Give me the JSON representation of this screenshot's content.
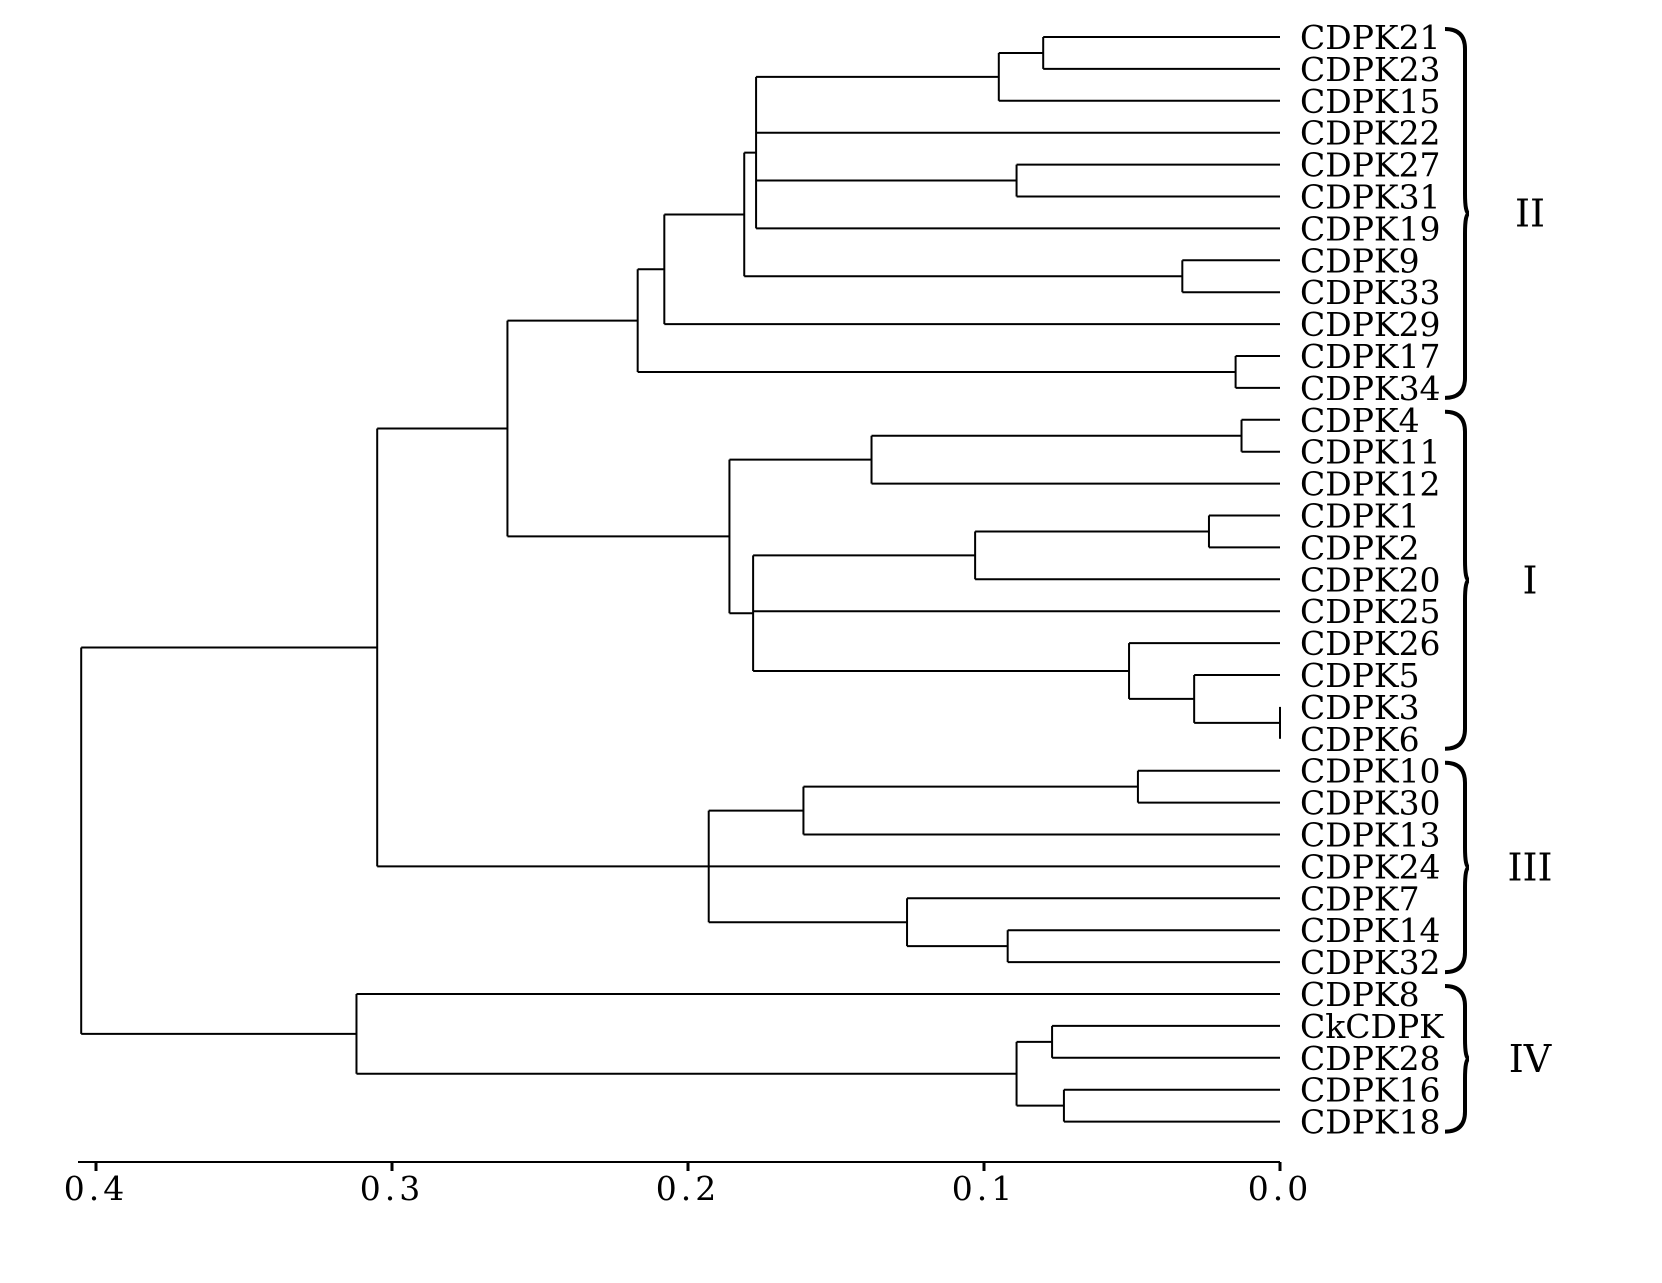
{
  "leaves": [
    "CDPK21",
    "CDPK23",
    "CDPK15",
    "CDPK22",
    "CDPK27",
    "CDPK31",
    "CDPK19",
    "CDPK9",
    "CDPK33",
    "CDPK29",
    "CDPK17",
    "CDPK34",
    "CDPK4",
    "CDPK11",
    "CDPK12",
    "CDPK1",
    "CDPK2",
    "CDPK20",
    "CDPK25",
    "CDPK26",
    "CDPK5",
    "CDPK3",
    "CDPK6",
    "CDPK10",
    "CDPK30",
    "CDPK13",
    "CDPK24",
    "CDPK7",
    "CDPK14",
    "CDPK32",
    "CDPK8",
    "CkCDPK",
    "CDPK28",
    "CDPK16",
    "CDPK18"
  ],
  "groups": [
    {
      "label": "II",
      "first": 0,
      "last": 11
    },
    {
      "label": "I",
      "first": 12,
      "last": 22
    },
    {
      "label": "III",
      "first": 23,
      "last": 29
    },
    {
      "label": "IV",
      "first": 30,
      "last": 34
    }
  ],
  "scale": {
    "min": 0.0,
    "max": 0.4,
    "ticks": [
      0.4,
      0.3,
      0.2,
      0.1,
      0.0
    ],
    "tick_labels": [
      "0.4",
      "0.3",
      "0.2",
      "0.1",
      "0.0"
    ]
  },
  "tree": {
    "h": 0.405,
    "c": [
      {
        "h": 0.305,
        "c": [
          {
            "h": 0.261,
            "c": [
              {
                "h": 0.217,
                "c": [
                  {
                    "h": 0.208,
                    "c": [
                      {
                        "h": 0.181,
                        "c": [
                          {
                            "h": 0.177,
                            "c": [
                              {
                                "h": 0.095,
                                "c": [
                                  {
                                    "h": 0.08,
                                    "c": [
                                      {
                                        "l": 0
                                      },
                                      {
                                        "l": 1
                                      }
                                    ]
                                  },
                                  {
                                    "l": 2
                                  }
                                ]
                              },
                              {
                                "l": 3
                              },
                              {
                                "h": 0.089,
                                "c": [
                                  {
                                    "l": 4
                                  },
                                  {
                                    "l": 5
                                  }
                                ]
                              },
                              {
                                "l": 6
                              }
                            ]
                          },
                          {
                            "h": 0.033,
                            "c": [
                              {
                                "l": 7
                              },
                              {
                                "l": 8
                              }
                            ]
                          }
                        ]
                      },
                      {
                        "l": 9
                      }
                    ]
                  },
                  {
                    "h": 0.015,
                    "c": [
                      {
                        "l": 10
                      },
                      {
                        "l": 11
                      }
                    ]
                  }
                ]
              },
              {
                "h": 0.186,
                "c": [
                  {
                    "h": 0.138,
                    "c": [
                      {
                        "h": 0.013,
                        "c": [
                          {
                            "l": 12
                          },
                          {
                            "l": 13
                          }
                        ]
                      },
                      {
                        "l": 14
                      }
                    ]
                  },
                  {
                    "h": 0.178,
                    "c": [
                      {
                        "h": 0.103,
                        "c": [
                          {
                            "h": 0.024,
                            "c": [
                              {
                                "l": 15
                              },
                              {
                                "l": 16
                              }
                            ]
                          },
                          {
                            "l": 17
                          }
                        ]
                      },
                      {
                        "l": 18
                      },
                      {
                        "h": 0.051,
                        "c": [
                          {
                            "l": 19
                          },
                          {
                            "h": 0.029,
                            "c": [
                              {
                                "l": 20
                              },
                              {
                                "h": 0.0,
                                "c": [
                                  {
                                    "l": 21
                                  },
                                  {
                                    "l": 22
                                  }
                                ]
                              }
                            ]
                          }
                        ]
                      }
                    ]
                  }
                ]
              }
            ]
          },
          {
            "h": 0.193,
            "c": [
              {
                "h": 0.161,
                "c": [
                  {
                    "h": 0.048,
                    "c": [
                      {
                        "l": 23
                      },
                      {
                        "l": 24
                      }
                    ]
                  },
                  {
                    "l": 25
                  }
                ]
              },
              {
                "l": 26
              },
              {
                "h": 0.126,
                "c": [
                  {
                    "l": 27
                  },
                  {
                    "h": 0.092,
                    "c": [
                      {
                        "l": 28
                      },
                      {
                        "l": 29
                      }
                    ]
                  }
                ]
              }
            ]
          }
        ]
      },
      {
        "h": 0.312,
        "c": [
          {
            "l": 30
          },
          {
            "h": 0.089,
            "c": [
              {
                "h": 0.077,
                "c": [
                  {
                    "l": 31
                  },
                  {
                    "l": 32
                  }
                ]
              },
              {
                "h": 0.073,
                "c": [
                  {
                    "l": 33
                  },
                  {
                    "l": 34
                  }
                ]
              }
            ]
          }
        ]
      }
    ]
  }
}
